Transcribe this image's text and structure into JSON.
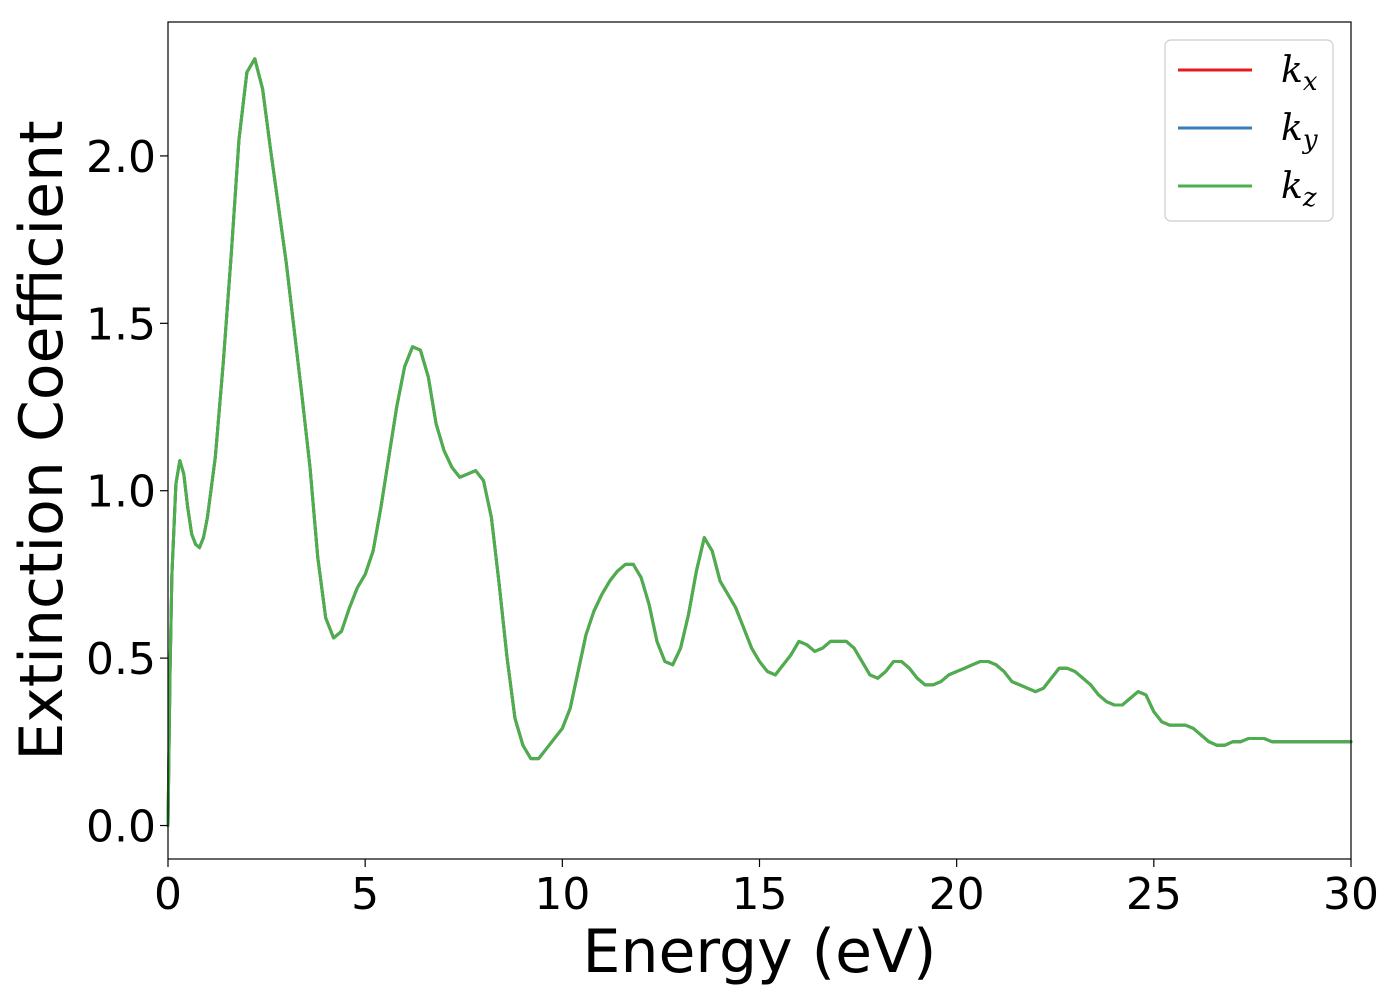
{
  "chart_data": {
    "type": "line",
    "title": "",
    "xlabel": "Energy (eV)",
    "ylabel": "Extinction Coefficient",
    "xlim": [
      0,
      30
    ],
    "ylim": [
      -0.1,
      2.4
    ],
    "xticks": [
      0,
      5,
      10,
      15,
      20,
      25,
      30
    ],
    "yticks": [
      0.0,
      0.5,
      1.0,
      1.5,
      2.0
    ],
    "xtick_labels": [
      "0",
      "5",
      "10",
      "15",
      "20",
      "25",
      "30"
    ],
    "ytick_labels": [
      "0.0",
      "0.5",
      "1.0",
      "1.5",
      "2.0"
    ],
    "grid": false,
    "legend_position": "top-right",
    "series": [
      {
        "name": "kx",
        "symbol": "k",
        "subscript": "x",
        "color": "#e41a1c",
        "x": [
          0.0,
          0.05,
          0.1,
          0.2,
          0.3,
          0.4,
          0.5,
          0.6,
          0.7,
          0.8,
          0.9,
          1.0,
          1.2,
          1.4,
          1.6,
          1.8,
          2.0,
          2.2,
          2.4,
          2.6,
          2.8,
          3.0,
          3.2,
          3.4,
          3.6,
          3.8,
          4.0,
          4.2,
          4.4,
          4.6,
          4.8,
          5.0,
          5.2,
          5.4,
          5.6,
          5.8,
          6.0,
          6.2,
          6.4,
          6.6,
          6.8,
          7.0,
          7.2,
          7.4,
          7.6,
          7.8,
          8.0,
          8.2,
          8.4,
          8.6,
          8.8,
          9.0,
          9.2,
          9.4,
          9.6,
          9.8,
          10.0,
          10.2,
          10.4,
          10.6,
          10.8,
          11.0,
          11.2,
          11.4,
          11.6,
          11.8,
          12.0,
          12.2,
          12.4,
          12.6,
          12.8,
          13.0,
          13.2,
          13.4,
          13.6,
          13.8,
          14.0,
          14.2,
          14.4,
          14.6,
          14.8,
          15.0,
          15.2,
          15.4,
          15.6,
          15.8,
          16.0,
          16.2,
          16.4,
          16.6,
          16.8,
          17.0,
          17.2,
          17.4,
          17.6,
          17.8,
          18.0,
          18.2,
          18.4,
          18.6,
          18.8,
          19.0,
          19.2,
          19.4,
          19.6,
          19.8,
          20.0,
          20.2,
          20.4,
          20.6,
          20.8,
          21.0,
          21.2,
          21.4,
          21.6,
          21.8,
          22.0,
          22.2,
          22.4,
          22.6,
          22.8,
          23.0,
          23.2,
          23.4,
          23.6,
          23.8,
          24.0,
          24.2,
          24.4,
          24.6,
          24.8,
          25.0,
          25.2,
          25.4,
          25.6,
          25.8,
          26.0,
          26.2,
          26.4,
          26.6,
          26.8,
          27.0,
          27.2,
          27.4,
          27.6,
          27.8,
          28.0,
          28.2,
          28.4,
          28.6,
          28.8,
          29.0,
          29.2,
          29.4,
          29.6,
          29.8,
          30.0
        ],
        "y": [
          0.0,
          0.45,
          0.75,
          1.02,
          1.09,
          1.05,
          0.95,
          0.87,
          0.84,
          0.83,
          0.86,
          0.92,
          1.1,
          1.38,
          1.7,
          2.05,
          2.25,
          2.29,
          2.2,
          2.02,
          1.85,
          1.68,
          1.48,
          1.28,
          1.07,
          0.8,
          0.62,
          0.56,
          0.58,
          0.65,
          0.71,
          0.75,
          0.82,
          0.95,
          1.1,
          1.25,
          1.37,
          1.43,
          1.42,
          1.34,
          1.2,
          1.12,
          1.07,
          1.04,
          1.05,
          1.06,
          1.03,
          0.92,
          0.72,
          0.5,
          0.32,
          0.24,
          0.2,
          0.2,
          0.23,
          0.26,
          0.29,
          0.35,
          0.46,
          0.57,
          0.64,
          0.69,
          0.73,
          0.76,
          0.78,
          0.78,
          0.74,
          0.66,
          0.55,
          0.49,
          0.48,
          0.53,
          0.63,
          0.76,
          0.86,
          0.82,
          0.73,
          0.69,
          0.65,
          0.59,
          0.53,
          0.49,
          0.46,
          0.45,
          0.48,
          0.51,
          0.55,
          0.54,
          0.52,
          0.53,
          0.55,
          0.55,
          0.55,
          0.53,
          0.49,
          0.45,
          0.44,
          0.46,
          0.49,
          0.49,
          0.47,
          0.44,
          0.42,
          0.42,
          0.43,
          0.45,
          0.46,
          0.47,
          0.48,
          0.49,
          0.49,
          0.48,
          0.46,
          0.43,
          0.42,
          0.41,
          0.4,
          0.41,
          0.44,
          0.47,
          0.47,
          0.46,
          0.44,
          0.42,
          0.39,
          0.37,
          0.36,
          0.36,
          0.38,
          0.4,
          0.39,
          0.34,
          0.31,
          0.3,
          0.3,
          0.3,
          0.29,
          0.27,
          0.25,
          0.24,
          0.24,
          0.25,
          0.25,
          0.26,
          0.26,
          0.26,
          0.25,
          0.25,
          0.25,
          0.25,
          0.25,
          0.25,
          0.25,
          0.25,
          0.25,
          0.25,
          0.25
        ]
      },
      {
        "name": "ky",
        "symbol": "k",
        "subscript": "y",
        "color": "#377eb8",
        "same_as": 0
      },
      {
        "name": "kz",
        "symbol": "k",
        "subscript": "z",
        "color": "#4daf4a",
        "same_as": 0
      }
    ]
  }
}
